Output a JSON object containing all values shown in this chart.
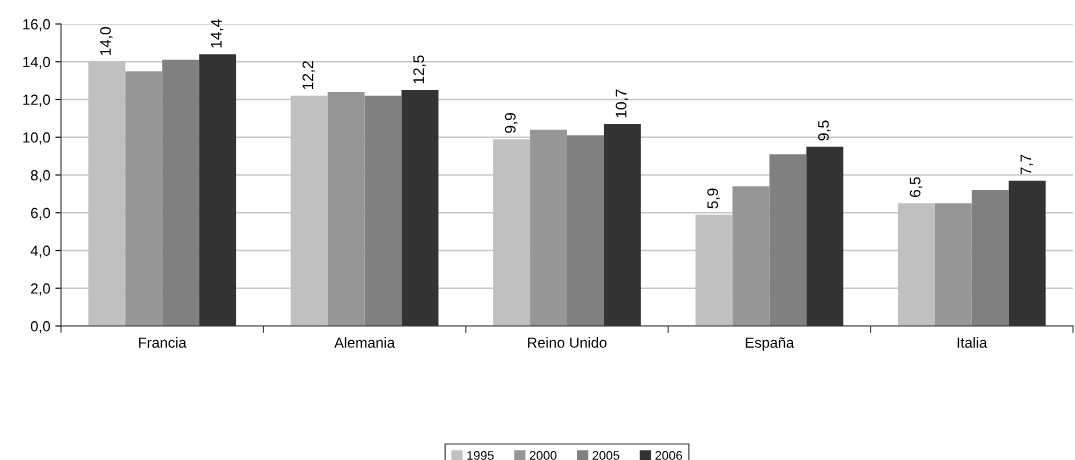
{
  "chart_data": {
    "type": "bar",
    "categories": [
      "Francia",
      "Alemania",
      "Reino Unido",
      "España",
      "Italia"
    ],
    "series": [
      {
        "name": "1995",
        "color": "#c0c0c0",
        "values": [
          14.0,
          12.2,
          9.9,
          5.9,
          6.5
        ],
        "value_labels": [
          "14,0",
          "12,2",
          "9,9",
          "5,9",
          "6,5"
        ]
      },
      {
        "name": "2000",
        "color": "#969696",
        "values": [
          13.5,
          12.4,
          10.4,
          7.4,
          6.5
        ]
      },
      {
        "name": "2005",
        "color": "#808080",
        "values": [
          14.1,
          12.2,
          10.1,
          9.1,
          7.2
        ]
      },
      {
        "name": "2006",
        "color": "#333333",
        "values": [
          14.4,
          12.5,
          10.7,
          9.5,
          7.7
        ],
        "value_labels": [
          "14,4",
          "12,5",
          "10,7",
          "9,5",
          "7,7"
        ]
      }
    ],
    "ylim": [
      0,
      16
    ],
    "yticks": [
      {
        "value": 0,
        "label": "0,0"
      },
      {
        "value": 2,
        "label": "2,0"
      },
      {
        "value": 4,
        "label": "4,0"
      },
      {
        "value": 6,
        "label": "6,0"
      },
      {
        "value": 8,
        "label": "8,0"
      },
      {
        "value": 10,
        "label": "10,0"
      },
      {
        "value": 12,
        "label": "12,0"
      },
      {
        "value": 14,
        "label": "14,0"
      },
      {
        "value": 16,
        "label": "16,0"
      }
    ],
    "grid": "y",
    "legend": "bottom"
  }
}
